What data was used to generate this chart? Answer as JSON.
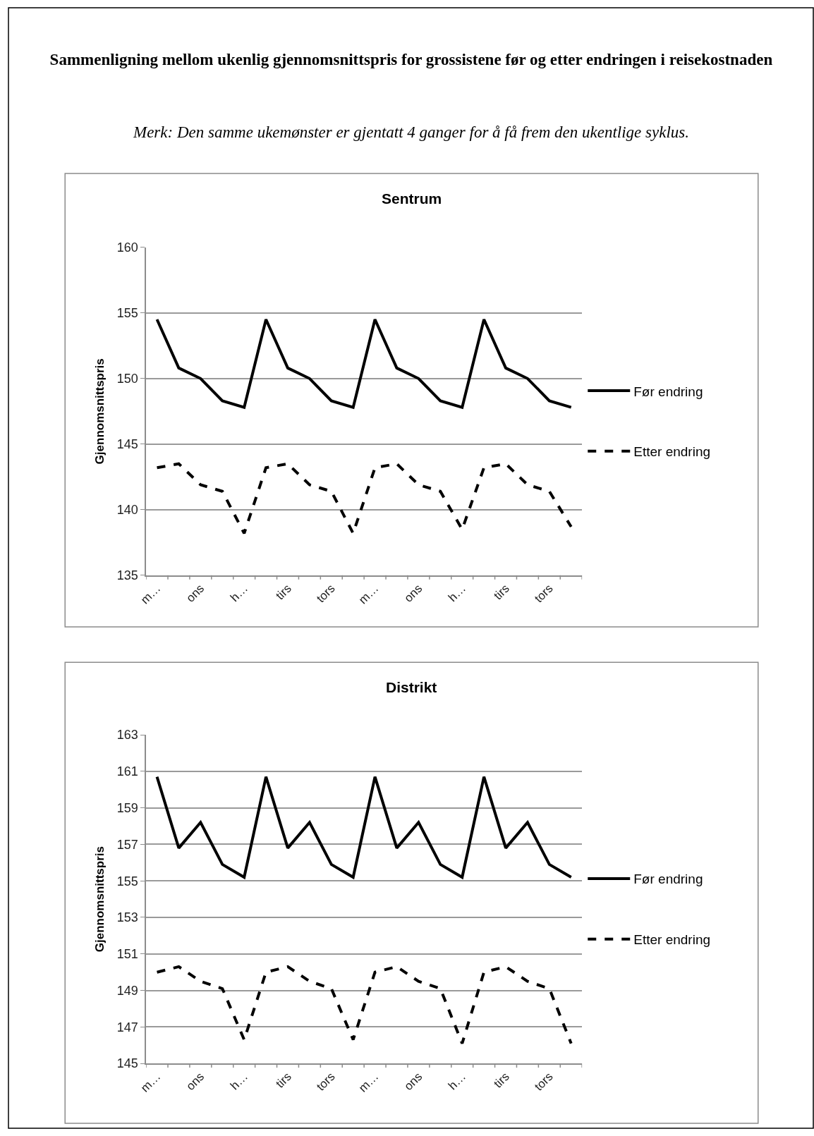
{
  "chart_data": [
    {
      "type": "line",
      "title": "Sentrum",
      "ylabel": "Gjennomsnittspris",
      "annotations": [
        "Sammenligning mellom ukenlig gjennomsnittspris for grossistene før og etter endringen i reisekostnaden",
        "Merk: Den samme ukemønster er gjentatt 4 ganger for å få frem den ukentlige syklus."
      ],
      "categories": [
        "m…",
        null,
        "ons",
        null,
        "h…",
        null,
        "tirs",
        null,
        "tors",
        null,
        "m…",
        null,
        "ons",
        null,
        "h…",
        null,
        "tirs",
        null,
        "tors",
        null
      ],
      "series": [
        {
          "name": "Før endring",
          "color": "#000000",
          "line_style": "solid",
          "values": [
            154.5,
            150.8,
            150.0,
            148.3,
            147.8,
            154.5,
            150.8,
            150.0,
            148.3,
            147.8,
            154.5,
            150.8,
            150.0,
            148.3,
            147.8,
            154.5,
            150.8,
            150.0,
            148.3,
            147.8
          ]
        },
        {
          "name": "Etter endring",
          "color": "#000000",
          "line_style": "dashed",
          "values": [
            143.2,
            143.5,
            141.9,
            141.4,
            138.2,
            143.2,
            143.5,
            141.9,
            141.4,
            138.2,
            143.2,
            143.5,
            141.9,
            141.4,
            138.5,
            143.2,
            143.5,
            141.9,
            141.4,
            138.7
          ]
        }
      ],
      "ylim": [
        135,
        160
      ],
      "yticks": [
        135,
        140,
        145,
        150,
        155,
        160
      ],
      "grid": "y",
      "legend": "right"
    },
    {
      "type": "line",
      "title": "Distrikt",
      "ylabel": "Gjennomsnittspris",
      "categories": [
        "m…",
        null,
        "ons",
        null,
        "h…",
        null,
        "tirs",
        null,
        "tors",
        null,
        "m…",
        null,
        "ons",
        null,
        "h…",
        null,
        "tirs",
        null,
        "tors",
        null
      ],
      "series": [
        {
          "name": "Før endring",
          "color": "#000000",
          "line_style": "solid",
          "values": [
            160.7,
            156.8,
            158.2,
            155.9,
            155.2,
            160.7,
            156.8,
            158.2,
            155.9,
            155.2,
            160.7,
            156.8,
            158.2,
            155.9,
            155.2,
            160.7,
            156.8,
            158.2,
            155.9,
            155.2
          ]
        },
        {
          "name": "Etter endring",
          "color": "#000000",
          "line_style": "dashed",
          "values": [
            150.0,
            150.3,
            149.5,
            149.1,
            146.3,
            150.0,
            150.3,
            149.5,
            149.1,
            146.3,
            150.0,
            150.3,
            149.5,
            149.1,
            146.1,
            150.0,
            150.3,
            149.5,
            149.1,
            146.1
          ]
        }
      ],
      "ylim": [
        145,
        163
      ],
      "yticks": [
        145,
        147,
        149,
        151,
        153,
        155,
        157,
        159,
        161,
        163
      ],
      "grid": "y",
      "legend": "right"
    }
  ]
}
